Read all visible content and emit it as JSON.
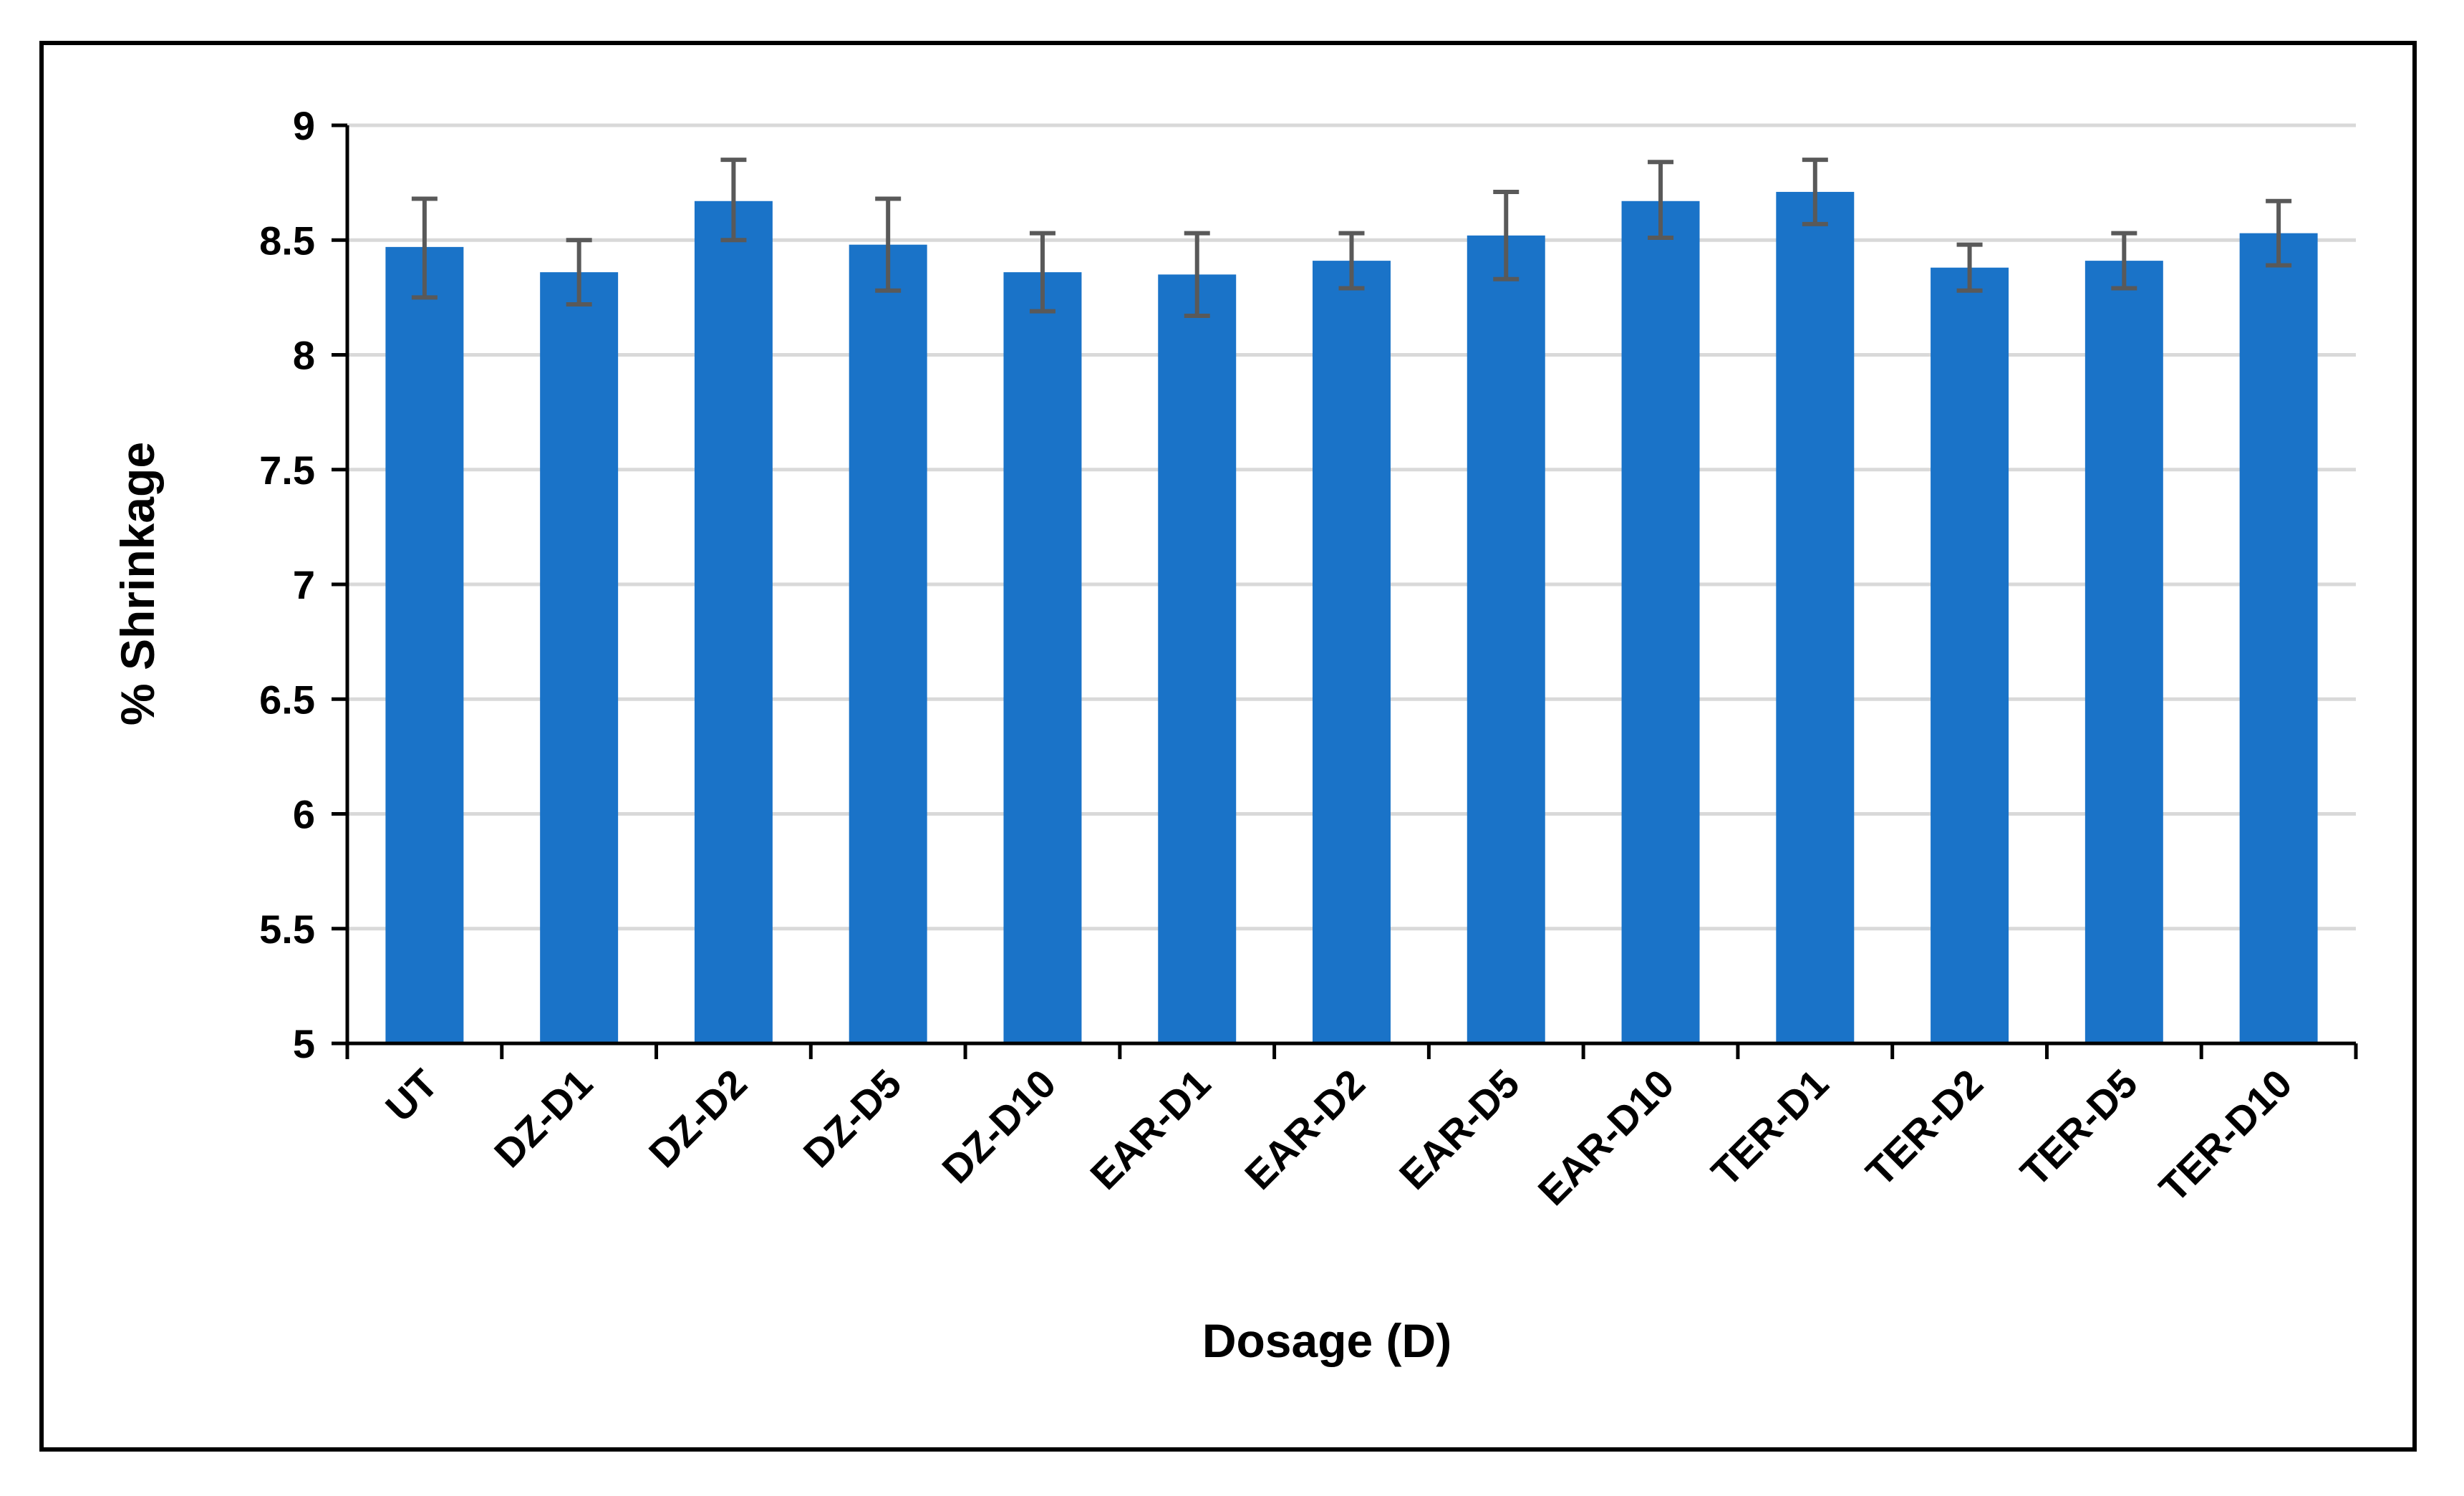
{
  "chart_data": {
    "type": "bar",
    "title": "",
    "xlabel": "Dosage (D)",
    "ylabel": "% Shrinkage",
    "ylim": [
      5,
      9
    ],
    "yticks": [
      "5",
      "5.5",
      "6",
      "6.5",
      "7",
      "7.5",
      "8",
      "8.5",
      "9"
    ],
    "grid": true,
    "legend": "none",
    "bar_color": "#1a73c8",
    "error_bar_color": "#595959",
    "categories": [
      "UT",
      "DZ-D1",
      "DZ-D2",
      "DZ-D5",
      "DZ-D10",
      "EAR-D1",
      "EAR-D2",
      "EAR-D5",
      "EAR-D10",
      "TER-D1",
      "TER-D2",
      "TER-D5",
      "TER-D10"
    ],
    "values": [
      8.47,
      8.36,
      8.67,
      8.48,
      8.36,
      8.35,
      8.41,
      8.52,
      8.67,
      8.71,
      8.38,
      8.41,
      8.53
    ],
    "error_lower": [
      8.25,
      8.22,
      8.5,
      8.28,
      8.19,
      8.17,
      8.29,
      8.33,
      8.51,
      8.57,
      8.28,
      8.29,
      8.39
    ],
    "error_upper": [
      8.68,
      8.5,
      8.85,
      8.68,
      8.53,
      8.53,
      8.53,
      8.71,
      8.84,
      8.85,
      8.48,
      8.53,
      8.67
    ]
  }
}
